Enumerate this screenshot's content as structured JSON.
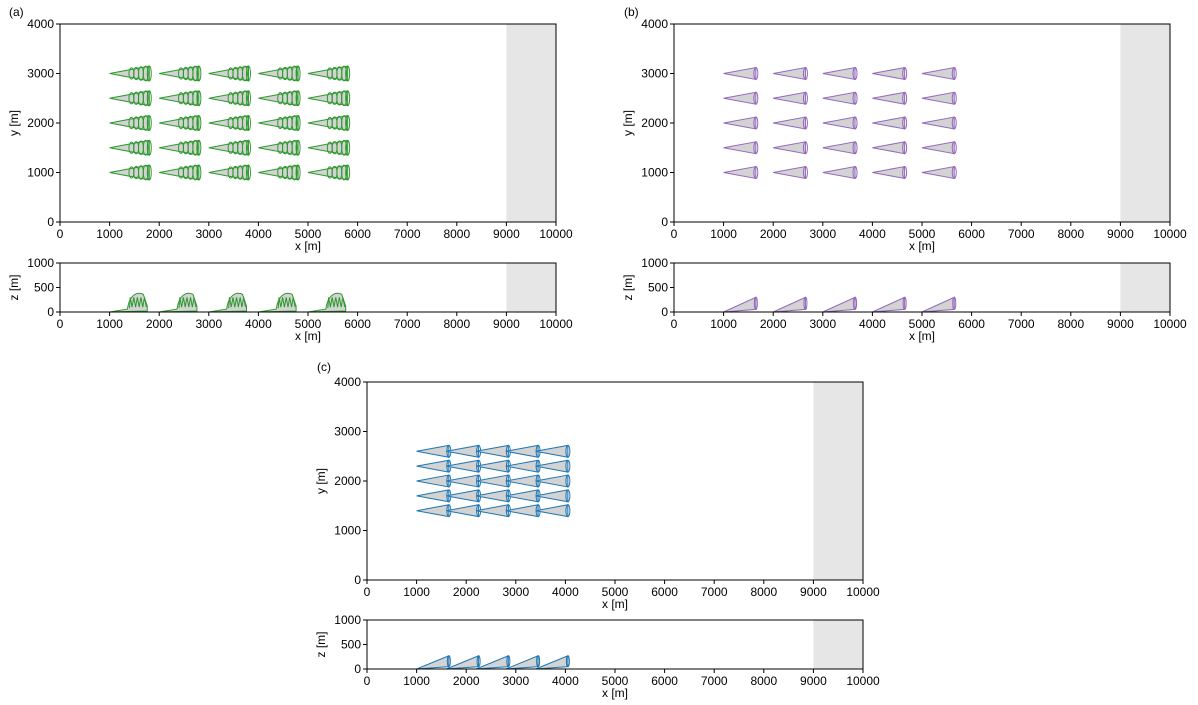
{
  "colors": {
    "a": "#2e9a2e",
    "b": "#9467bd",
    "c": "#1f77b4",
    "shape_fill": "#d3d3d3",
    "zone_fill": "#e6e6e6"
  },
  "chart_data": [
    {
      "type": "diagram",
      "panel_label": "(a)",
      "variant": "spiral",
      "xy_view": {
        "xlabel": "x [m]",
        "ylabel": "y [m]",
        "xlim": [
          0,
          10000
        ],
        "ylim": [
          0,
          4000
        ],
        "xticks": [
          0,
          1000,
          2000,
          3000,
          4000,
          5000,
          6000,
          7000,
          8000,
          9000,
          10000
        ],
        "yticks": [
          0,
          1000,
          2000,
          3000,
          4000
        ]
      },
      "xz_view": {
        "xlabel": "x [m]",
        "ylabel": "z [m]",
        "xlim": [
          0,
          10000
        ],
        "ylim": [
          0,
          1000
        ],
        "xticks": [
          0,
          1000,
          2000,
          3000,
          4000,
          5000,
          6000,
          7000,
          8000,
          9000,
          10000
        ],
        "yticks": [
          0,
          500,
          1000
        ]
      },
      "shaded_region_x": [
        9000,
        10000
      ],
      "origins_x": [
        1000,
        2000,
        3000,
        4000,
        5000
      ],
      "origins_y": [
        1000,
        1500,
        2000,
        2500,
        3000
      ],
      "cone_length": 800,
      "cone_half_width": 150,
      "max_height": 400
    },
    {
      "type": "diagram",
      "panel_label": "(b)",
      "variant": "cone",
      "xy_view": {
        "xlabel": "x [m]",
        "ylabel": "y [m]",
        "xlim": [
          0,
          10000
        ],
        "ylim": [
          0,
          4000
        ],
        "xticks": [
          0,
          1000,
          2000,
          3000,
          4000,
          5000,
          6000,
          7000,
          8000,
          9000,
          10000
        ],
        "yticks": [
          0,
          1000,
          2000,
          3000,
          4000
        ]
      },
      "xz_view": {
        "xlabel": "x [m]",
        "ylabel": "z [m]",
        "xlim": [
          0,
          10000
        ],
        "ylim": [
          0,
          1000
        ],
        "xticks": [
          0,
          1000,
          2000,
          3000,
          4000,
          5000,
          6000,
          7000,
          8000,
          9000,
          10000
        ],
        "yticks": [
          0,
          500,
          1000
        ]
      },
      "shaded_region_x": [
        9000,
        10000
      ],
      "origins_x": [
        1000,
        2000,
        3000,
        4000,
        5000
      ],
      "origins_y": [
        1000,
        1500,
        2000,
        2500,
        3000
      ],
      "cone_length": 650,
      "cone_half_width": 120,
      "max_height": 300
    },
    {
      "type": "diagram",
      "panel_label": "(c)",
      "variant": "cone",
      "xy_view": {
        "xlabel": "x [m]",
        "ylabel": "y [m]",
        "xlim": [
          0,
          10000
        ],
        "ylim": [
          0,
          4000
        ],
        "xticks": [
          0,
          1000,
          2000,
          3000,
          4000,
          5000,
          6000,
          7000,
          8000,
          9000,
          10000
        ],
        "yticks": [
          0,
          1000,
          2000,
          3000,
          4000
        ]
      },
      "xz_view": {
        "xlabel": "x [m]",
        "ylabel": "z [m]",
        "xlim": [
          0,
          10000
        ],
        "ylim": [
          0,
          1000
        ],
        "xticks": [
          0,
          1000,
          2000,
          3000,
          4000,
          5000,
          6000,
          7000,
          8000,
          9000,
          10000
        ],
        "yticks": [
          0,
          500,
          1000
        ]
      },
      "shaded_region_x": [
        9000,
        10000
      ],
      "origins_x": [
        1000,
        1600,
        2200,
        2800,
        3400
      ],
      "origins_y": [
        1400,
        1700,
        2000,
        2300,
        2600
      ],
      "cone_length": 650,
      "cone_half_width": 120,
      "max_height": 270
    }
  ]
}
